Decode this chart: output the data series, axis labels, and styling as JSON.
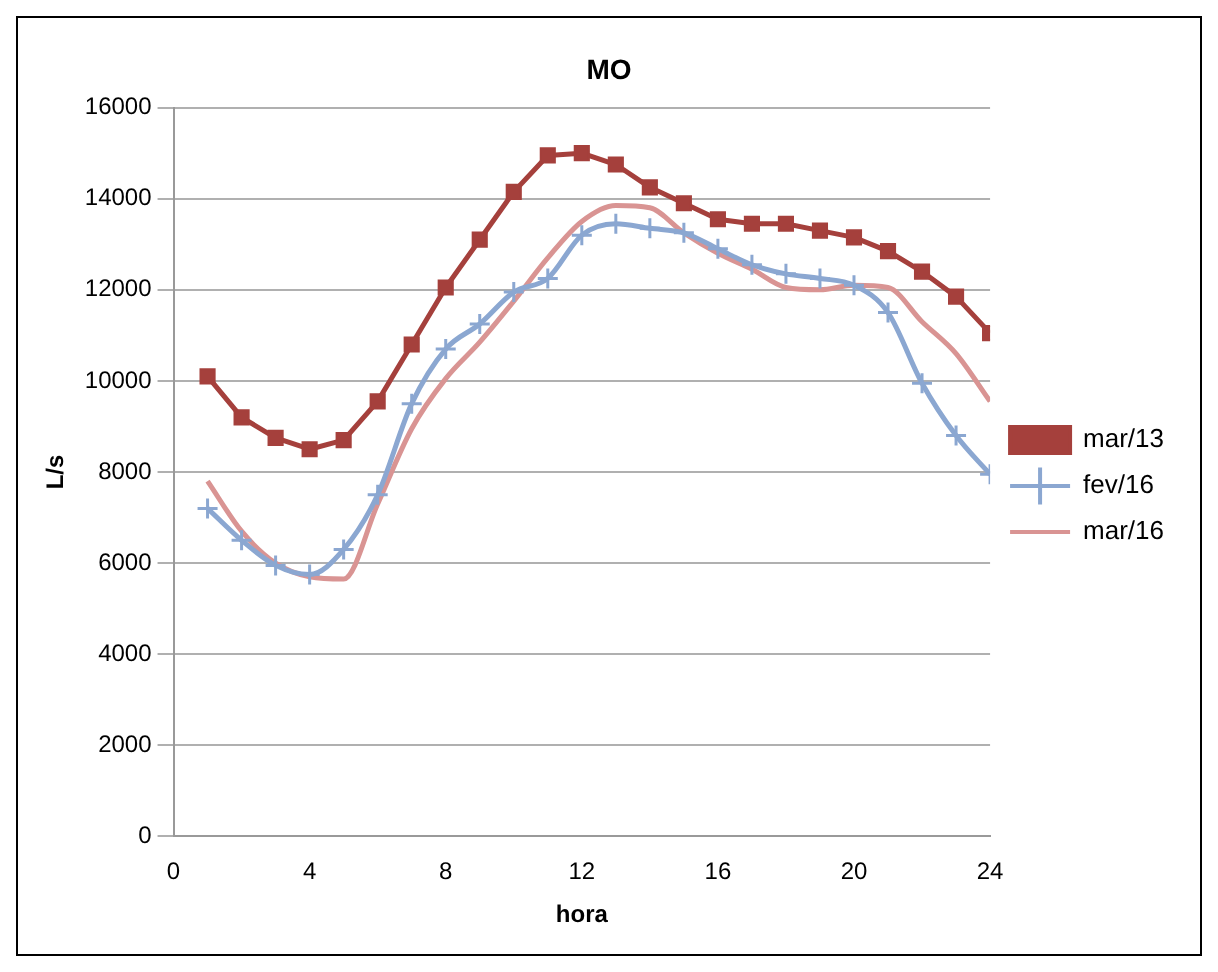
{
  "chart_data": {
    "type": "line",
    "title": "MO",
    "xlabel": "hora",
    "ylabel": "L/s",
    "x": [
      1,
      2,
      3,
      4,
      5,
      6,
      7,
      8,
      9,
      10,
      11,
      12,
      13,
      14,
      15,
      16,
      17,
      18,
      19,
      20,
      21,
      22,
      23,
      24
    ],
    "xlim": [
      0,
      24
    ],
    "xticks": [
      0,
      4,
      8,
      12,
      16,
      20,
      24
    ],
    "ylim": [
      0,
      16000
    ],
    "yticks": [
      0,
      2000,
      4000,
      6000,
      8000,
      10000,
      12000,
      14000,
      16000
    ],
    "grid": "y",
    "legend": "right",
    "series": [
      {
        "name": "mar/13",
        "color": "#a5403c",
        "marker": "square",
        "values": [
          10100,
          9200,
          8750,
          8500,
          8700,
          9550,
          10800,
          12050,
          13100,
          14150,
          14950,
          15000,
          14750,
          14250,
          13900,
          13550,
          13450,
          13450,
          13300,
          13150,
          12850,
          12400,
          11850,
          11050
        ]
      },
      {
        "name": "fev/16",
        "color": "#8ba7d1",
        "marker": "cross",
        "values": [
          7200,
          6500,
          5950,
          5750,
          6300,
          7500,
          9500,
          10700,
          11250,
          11950,
          12250,
          13200,
          13450,
          13350,
          13250,
          12900,
          12550,
          12350,
          12250,
          12100,
          11500,
          9950,
          8800,
          7950
        ]
      },
      {
        "name": "mar/16",
        "color": "#d99493",
        "marker": "none",
        "values": [
          7800,
          6700,
          6000,
          5700,
          5650,
          7300,
          8950,
          10050,
          10850,
          11750,
          12700,
          13500,
          13850,
          13800,
          13250,
          12800,
          12450,
          12050,
          12000,
          12100,
          12050,
          11300,
          10600,
          9550
        ]
      }
    ]
  }
}
